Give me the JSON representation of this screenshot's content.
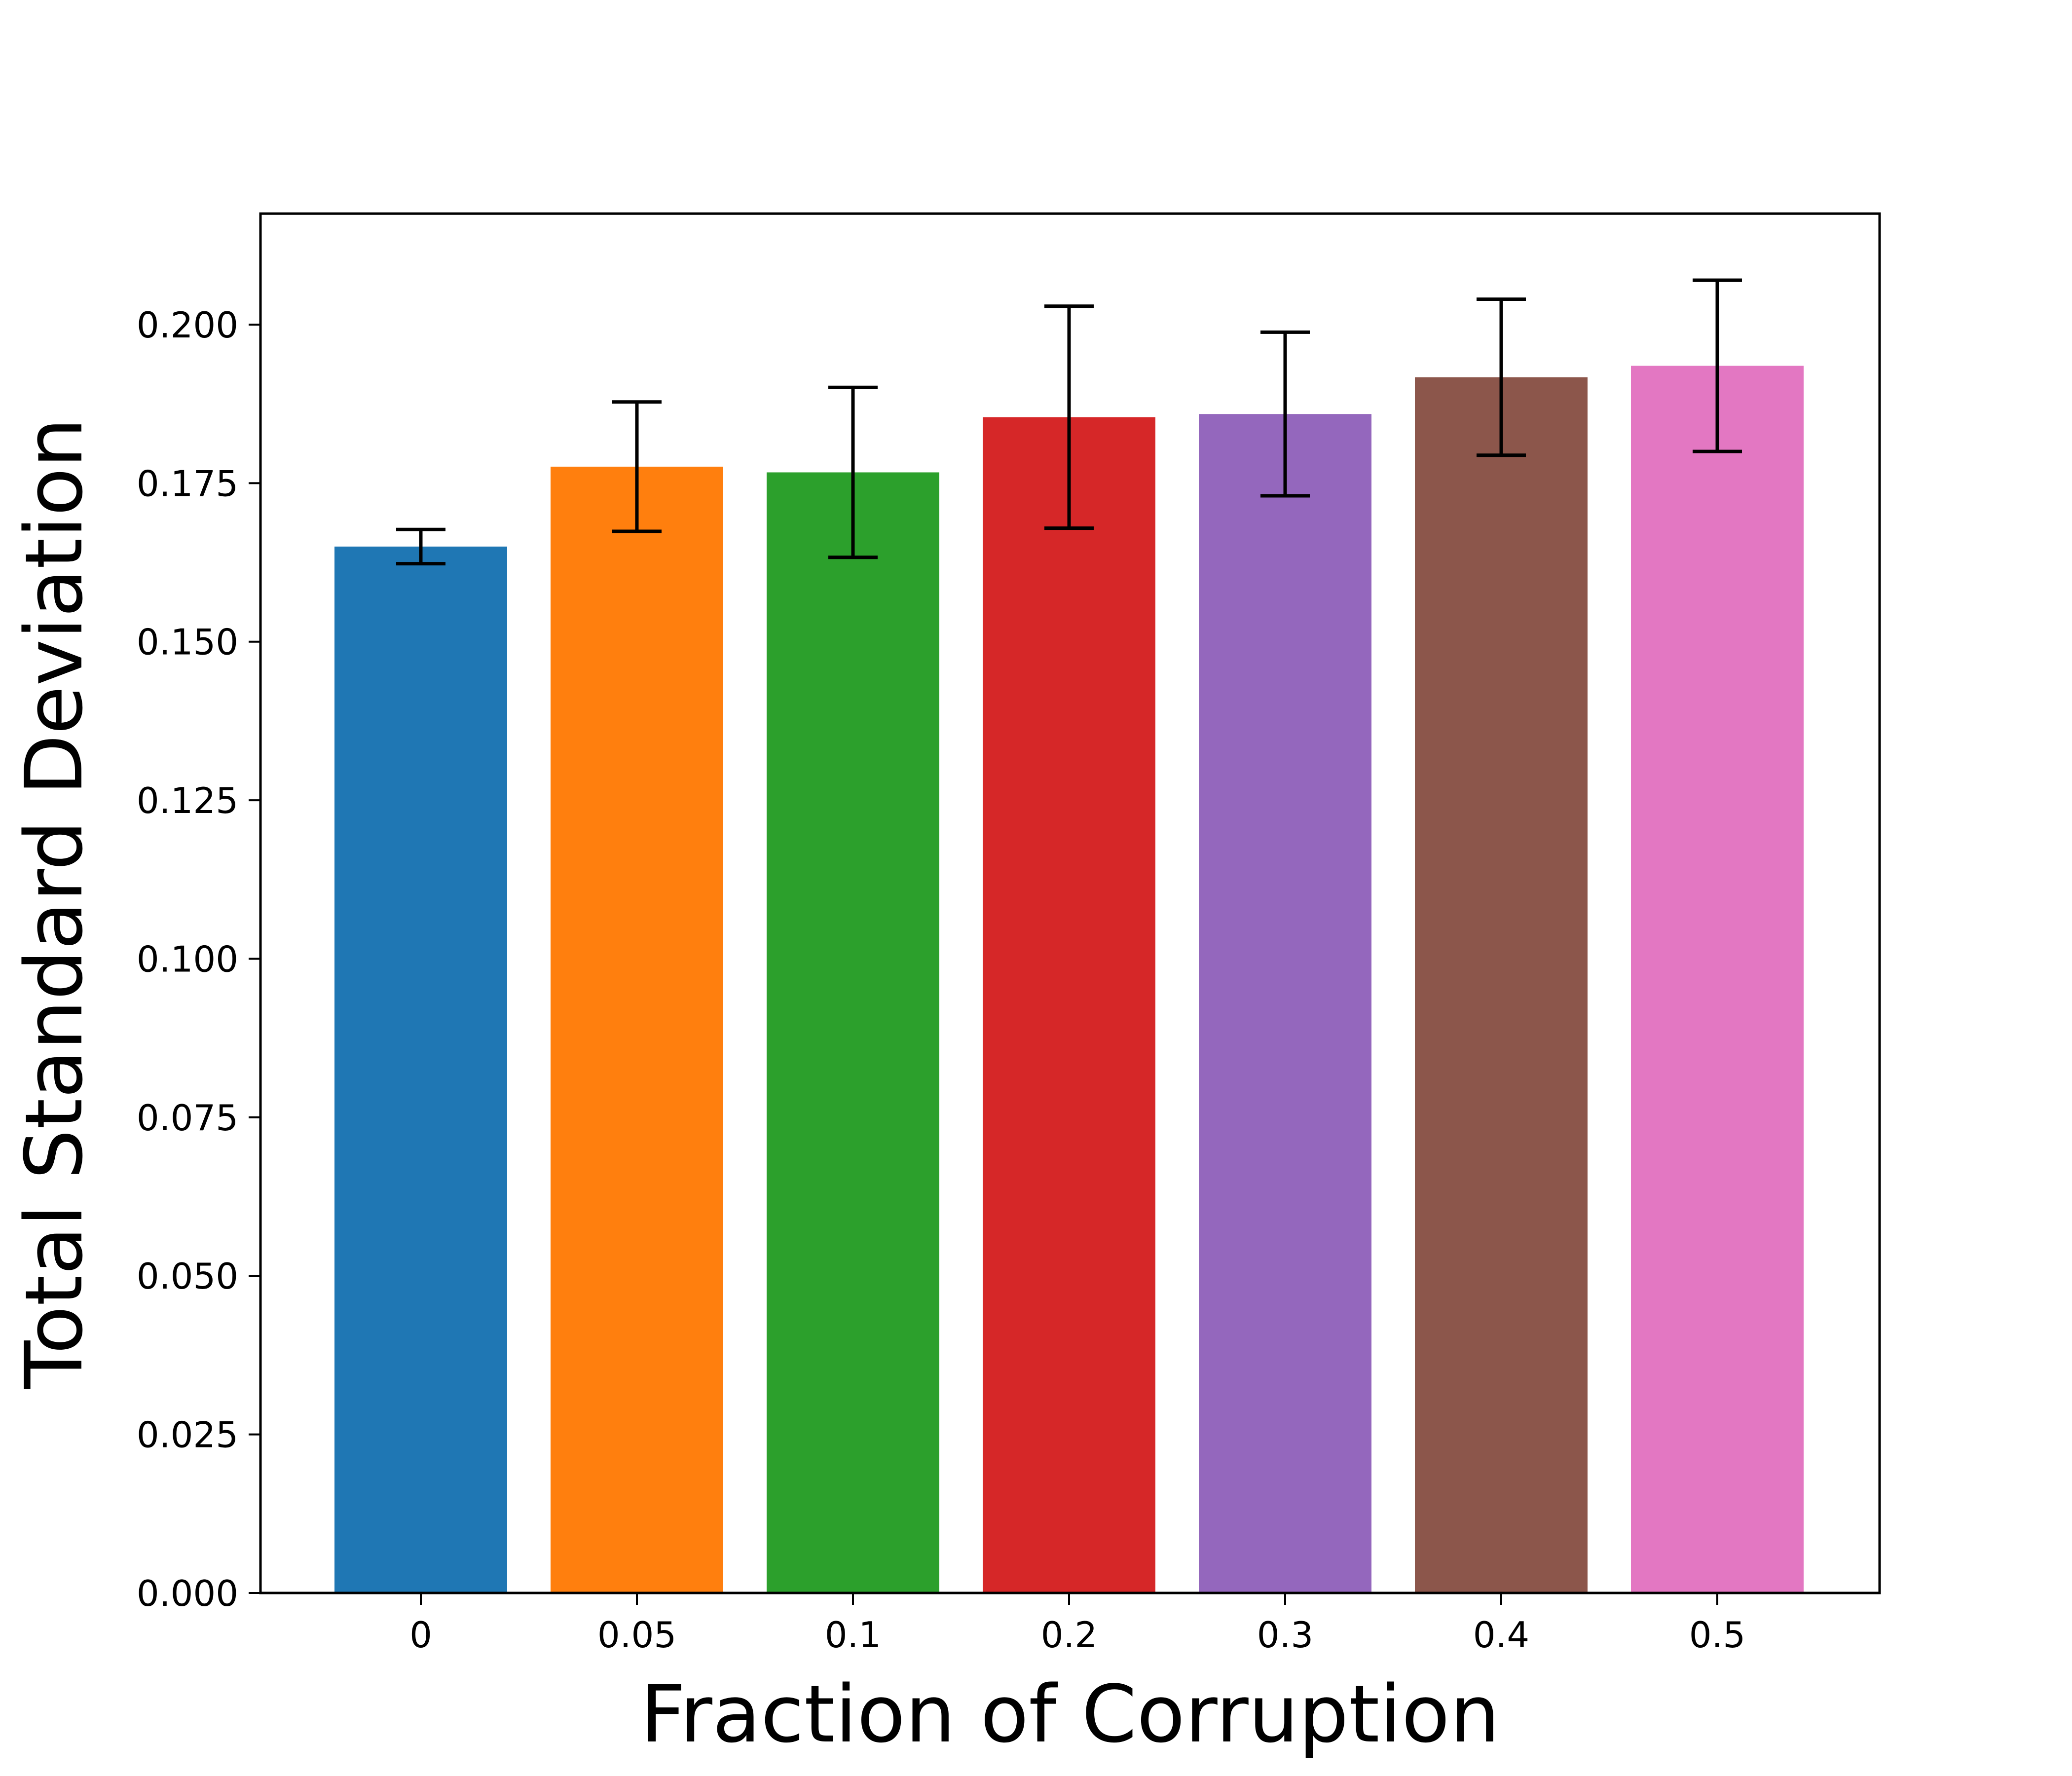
{
  "chart_data": {
    "type": "bar",
    "title": "",
    "xlabel": "Fraction of Corruption",
    "ylabel": "Total Standard Deviation",
    "categories": [
      "0",
      "0.05",
      "0.1",
      "0.2",
      "0.3",
      "0.4",
      "0.5"
    ],
    "values": [
      0.165,
      0.1776,
      0.1767,
      0.1854,
      0.1859,
      0.1917,
      0.1935
    ],
    "errors": [
      0.0027,
      0.0102,
      0.0134,
      0.0175,
      0.0129,
      0.0123,
      0.0135
    ],
    "colors": [
      "#1f77b4",
      "#ff7f0e",
      "#2ca02c",
      "#d62728",
      "#9467bd",
      "#8c564b",
      "#e377c2"
    ],
    "ylim": [
      0,
      0.2175
    ],
    "yticks": [
      0.0,
      0.025,
      0.05,
      0.075,
      0.1,
      0.125,
      0.15,
      0.175,
      0.2
    ],
    "ytick_labels": [
      "0.000",
      "0.025",
      "0.050",
      "0.075",
      "0.100",
      "0.125",
      "0.150",
      "0.175",
      "0.200"
    ],
    "grid": false,
    "legend": "none",
    "error_color": "#000000"
  }
}
